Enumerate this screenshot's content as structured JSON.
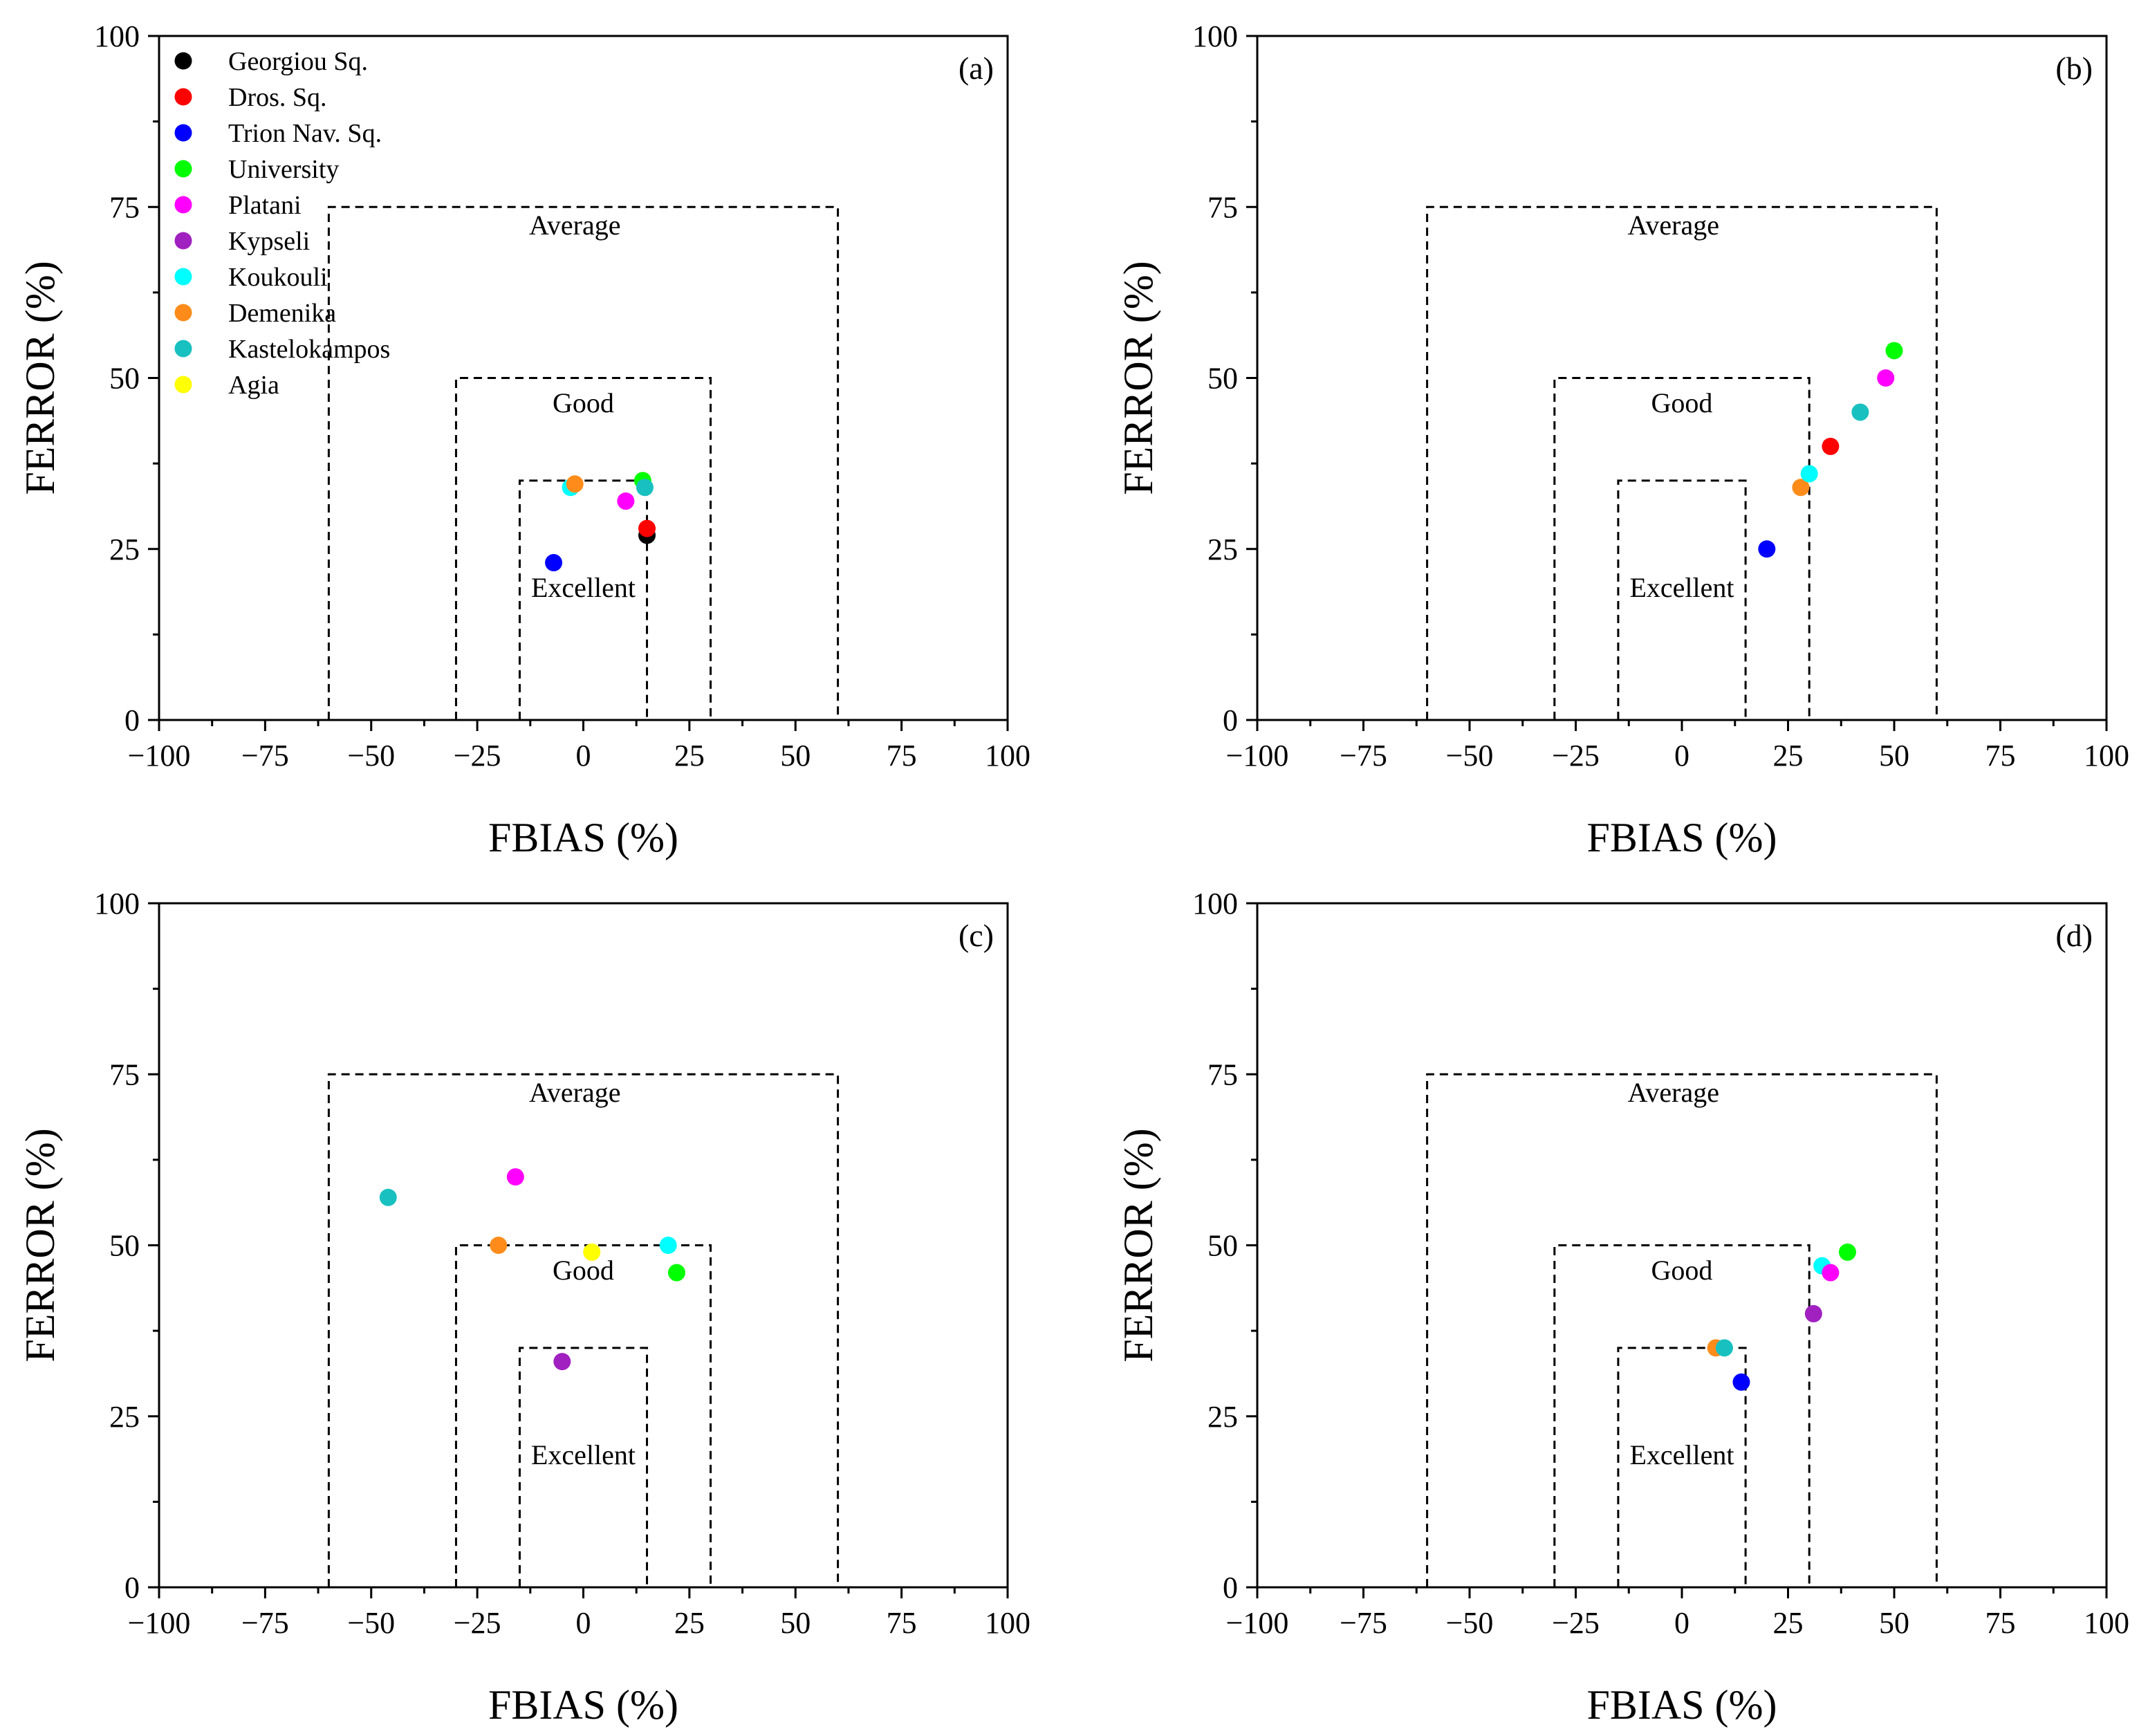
{
  "chart_data": {
    "type": "scatter",
    "xlabel": "FBIAS (%)",
    "ylabel": "FERROR (%)",
    "xlim": [
      -100,
      100
    ],
    "ylim": [
      0,
      100
    ],
    "x_ticks": [
      -100,
      -75,
      -50,
      -25,
      0,
      25,
      50,
      75,
      100
    ],
    "x_tick_labels": [
      "−100",
      "−75",
      "−50",
      "−25",
      "0",
      "25",
      "50",
      "75",
      "100"
    ],
    "y_ticks": [
      0,
      25,
      50,
      75,
      100
    ],
    "y_tick_labels": [
      "0",
      "25",
      "50",
      "75",
      "100"
    ],
    "grid": false,
    "legend_location": "top-left (panel a only)",
    "sites": [
      {
        "name": "Georgiou Sq.",
        "color": "#000000"
      },
      {
        "name": "Dros. Sq.",
        "color": "#ff0000"
      },
      {
        "name": "Trion Nav. Sq.",
        "color": "#0000ff"
      },
      {
        "name": "University",
        "color": "#00ff00"
      },
      {
        "name": "Platani",
        "color": "#ff00ff"
      },
      {
        "name": "Kypseli",
        "color": "#a020c0"
      },
      {
        "name": "Koukouli",
        "color": "#00ffff"
      },
      {
        "name": "Demenika",
        "color": "#ff8c1a"
      },
      {
        "name": "Kastelokampos",
        "color": "#19c0c0"
      },
      {
        "name": "Agia",
        "color": "#ffff00"
      }
    ],
    "zones": [
      {
        "label": "Average",
        "fbias_range": [
          -60,
          60
        ],
        "ferror_max": 75,
        "label_at": [
          -2,
          71
        ]
      },
      {
        "label": "Good",
        "fbias_range": [
          -30,
          30
        ],
        "ferror_max": 50,
        "label_at": [
          0,
          45
        ]
      },
      {
        "label": "Excellent",
        "fbias_range": [
          -15,
          15
        ],
        "ferror_max": 35,
        "label_at": [
          0,
          18
        ]
      }
    ],
    "panels": [
      {
        "label": "(a)",
        "points": [
          {
            "site": "Georgiou Sq.",
            "x": 15,
            "y": 27
          },
          {
            "site": "Dros. Sq.",
            "x": 15,
            "y": 28
          },
          {
            "site": "Trion Nav. Sq.",
            "x": -7,
            "y": 23
          },
          {
            "site": "University",
            "x": 14,
            "y": 35
          },
          {
            "site": "Platani",
            "x": 10,
            "y": 32
          },
          {
            "site": "Koukouli",
            "x": -3,
            "y": 34
          },
          {
            "site": "Demenika",
            "x": -2,
            "y": 34.5
          },
          {
            "site": "Kastelokampos",
            "x": 14.5,
            "y": 34
          }
        ]
      },
      {
        "label": "(b)",
        "points": [
          {
            "site": "Trion Nav. Sq.",
            "x": 20,
            "y": 25
          },
          {
            "site": "Demenika",
            "x": 28,
            "y": 34
          },
          {
            "site": "Koukouli",
            "x": 30,
            "y": 36
          },
          {
            "site": "Dros. Sq.",
            "x": 35,
            "y": 40
          },
          {
            "site": "Kastelokampos",
            "x": 42,
            "y": 45
          },
          {
            "site": "Platani",
            "x": 48,
            "y": 50
          },
          {
            "site": "University",
            "x": 50,
            "y": 54
          }
        ]
      },
      {
        "label": "(c)",
        "points": [
          {
            "site": "Kastelokampos",
            "x": -46,
            "y": 57
          },
          {
            "site": "Platani",
            "x": -16,
            "y": 60
          },
          {
            "site": "Demenika",
            "x": -20,
            "y": 50
          },
          {
            "site": "Agia",
            "x": 2,
            "y": 49
          },
          {
            "site": "Koukouli",
            "x": 20,
            "y": 50
          },
          {
            "site": "University",
            "x": 22,
            "y": 46
          },
          {
            "site": "Kypseli",
            "x": -5,
            "y": 33
          }
        ]
      },
      {
        "label": "(d)",
        "points": [
          {
            "site": "University",
            "x": 39,
            "y": 49
          },
          {
            "site": "Koukouli",
            "x": 33,
            "y": 47
          },
          {
            "site": "Platani",
            "x": 35,
            "y": 46
          },
          {
            "site": "Kypseli",
            "x": 31,
            "y": 40
          },
          {
            "site": "Demenika",
            "x": 8,
            "y": 35
          },
          {
            "site": "Kastelokampos",
            "x": 10,
            "y": 35
          },
          {
            "site": "Trion Nav. Sq.",
            "x": 14,
            "y": 30
          }
        ]
      }
    ]
  }
}
